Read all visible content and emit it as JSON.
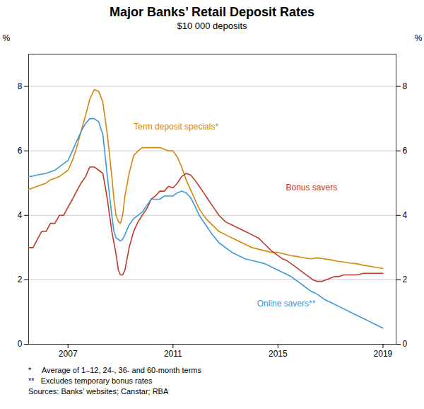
{
  "chart_data": {
    "type": "line",
    "title": "Major Banks’ Retail Deposit Rates",
    "subtitle": "$10 000 deposits",
    "ylabel": "%",
    "y2label": "%",
    "xlim": [
      2005.5,
      2019.5
    ],
    "xticks": [
      2007,
      2011,
      2015,
      2019
    ],
    "ylim": [
      0,
      9
    ],
    "yticks": [
      0,
      2,
      4,
      6,
      8
    ],
    "y2lim": [
      0,
      9
    ],
    "y2ticks": [
      0,
      2,
      4,
      6,
      8
    ],
    "grid": true,
    "series": [
      {
        "name": "Term deposit specials*",
        "color": "#D4860A",
        "x": [
          2005.5,
          2005.67,
          2005.83,
          2006.0,
          2006.17,
          2006.33,
          2006.5,
          2006.67,
          2006.83,
          2007.0,
          2007.17,
          2007.33,
          2007.5,
          2007.67,
          2007.83,
          2008.0,
          2008.17,
          2008.33,
          2008.5,
          2008.67,
          2008.75,
          2008.83,
          2008.92,
          2009.0,
          2009.08,
          2009.17,
          2009.33,
          2009.5,
          2009.67,
          2009.83,
          2010.0,
          2010.17,
          2010.33,
          2010.5,
          2010.67,
          2010.83,
          2011.0,
          2011.17,
          2011.33,
          2011.5,
          2011.67,
          2011.83,
          2012.0,
          2012.25,
          2012.5,
          2012.75,
          2013.0,
          2013.25,
          2013.5,
          2013.75,
          2014.0,
          2014.25,
          2014.5,
          2014.75,
          2015.0,
          2015.25,
          2015.5,
          2015.75,
          2016.0,
          2016.25,
          2016.5,
          2016.75,
          2017.0,
          2017.25,
          2017.5,
          2017.75,
          2018.0,
          2018.25,
          2018.5,
          2018.75,
          2019.0
        ],
        "values": [
          4.8,
          4.85,
          4.9,
          4.95,
          5.0,
          5.1,
          5.15,
          5.2,
          5.3,
          5.4,
          5.7,
          6.1,
          6.6,
          7.1,
          7.6,
          7.9,
          7.85,
          7.5,
          6.5,
          5.2,
          4.5,
          4.0,
          3.8,
          3.75,
          4.0,
          4.6,
          5.3,
          5.85,
          6.0,
          6.1,
          6.1,
          6.1,
          6.1,
          6.1,
          6.05,
          6.0,
          6.0,
          5.8,
          5.5,
          5.1,
          4.8,
          4.5,
          4.2,
          3.9,
          3.7,
          3.5,
          3.4,
          3.3,
          3.2,
          3.1,
          3.0,
          2.95,
          2.9,
          2.85,
          2.85,
          2.8,
          2.75,
          2.72,
          2.68,
          2.65,
          2.68,
          2.65,
          2.62,
          2.58,
          2.55,
          2.52,
          2.5,
          2.45,
          2.42,
          2.38,
          2.35
        ]
      },
      {
        "name": "Bonus savers",
        "color": "#C0392B",
        "x": [
          2005.5,
          2005.67,
          2005.83,
          2006.0,
          2006.17,
          2006.33,
          2006.5,
          2006.67,
          2006.83,
          2007.0,
          2007.17,
          2007.33,
          2007.5,
          2007.67,
          2007.83,
          2008.0,
          2008.17,
          2008.33,
          2008.5,
          2008.67,
          2008.83,
          2008.92,
          2009.0,
          2009.08,
          2009.17,
          2009.33,
          2009.5,
          2009.67,
          2009.83,
          2010.0,
          2010.17,
          2010.33,
          2010.5,
          2010.67,
          2010.83,
          2011.0,
          2011.17,
          2011.33,
          2011.5,
          2011.67,
          2011.83,
          2012.0,
          2012.17,
          2012.33,
          2012.5,
          2012.75,
          2013.0,
          2013.25,
          2013.5,
          2013.75,
          2014.0,
          2014.25,
          2014.5,
          2014.75,
          2015.0,
          2015.17,
          2015.33,
          2015.5,
          2015.67,
          2015.83,
          2016.0,
          2016.17,
          2016.33,
          2016.5,
          2016.67,
          2016.83,
          2017.0,
          2017.17,
          2017.33,
          2017.5,
          2017.75,
          2018.0,
          2018.25,
          2018.5,
          2018.75,
          2019.0
        ],
        "values": [
          3.0,
          3.0,
          3.25,
          3.5,
          3.5,
          3.75,
          3.75,
          4.0,
          4.0,
          4.25,
          4.5,
          4.75,
          5.0,
          5.2,
          5.5,
          5.5,
          5.4,
          5.3,
          4.5,
          3.5,
          2.8,
          2.3,
          2.15,
          2.15,
          2.3,
          3.0,
          3.5,
          3.8,
          4.0,
          4.2,
          4.5,
          4.6,
          4.75,
          4.75,
          4.9,
          4.85,
          5.0,
          5.2,
          5.3,
          5.25,
          5.1,
          4.9,
          4.7,
          4.5,
          4.3,
          4.0,
          3.8,
          3.7,
          3.6,
          3.5,
          3.4,
          3.3,
          3.1,
          2.9,
          2.75,
          2.65,
          2.6,
          2.5,
          2.4,
          2.3,
          2.2,
          2.1,
          2.0,
          1.95,
          1.95,
          2.0,
          2.05,
          2.1,
          2.1,
          2.15,
          2.15,
          2.15,
          2.2,
          2.2,
          2.2,
          2.2
        ]
      },
      {
        "name": "Online savers**",
        "color": "#3A9AD9",
        "x": [
          2005.5,
          2005.67,
          2005.83,
          2006.0,
          2006.17,
          2006.33,
          2006.5,
          2006.67,
          2006.83,
          2007.0,
          2007.17,
          2007.33,
          2007.5,
          2007.67,
          2007.83,
          2008.0,
          2008.17,
          2008.33,
          2008.5,
          2008.67,
          2008.75,
          2008.83,
          2008.92,
          2009.0,
          2009.08,
          2009.17,
          2009.33,
          2009.5,
          2009.67,
          2009.83,
          2010.0,
          2010.17,
          2010.33,
          2010.5,
          2010.67,
          2010.83,
          2011.0,
          2011.17,
          2011.33,
          2011.5,
          2011.67,
          2011.83,
          2012.0,
          2012.25,
          2012.5,
          2012.75,
          2013.0,
          2013.25,
          2013.5,
          2013.75,
          2014.0,
          2014.25,
          2014.5,
          2014.75,
          2015.0,
          2015.25,
          2015.5,
          2015.75,
          2016.0,
          2016.25,
          2016.5,
          2016.75,
          2017.0,
          2017.25,
          2017.5,
          2017.75,
          2018.0,
          2018.25,
          2018.5,
          2018.75,
          2019.0
        ],
        "values": [
          5.2,
          5.22,
          5.25,
          5.28,
          5.3,
          5.35,
          5.4,
          5.5,
          5.6,
          5.7,
          6.0,
          6.3,
          6.6,
          6.85,
          7.0,
          7.0,
          6.9,
          6.5,
          5.2,
          4.0,
          3.5,
          3.3,
          3.25,
          3.2,
          3.25,
          3.4,
          3.7,
          3.9,
          4.0,
          4.1,
          4.3,
          4.5,
          4.5,
          4.5,
          4.6,
          4.6,
          4.6,
          4.7,
          4.75,
          4.7,
          4.55,
          4.3,
          4.0,
          3.7,
          3.4,
          3.15,
          3.0,
          2.85,
          2.75,
          2.65,
          2.6,
          2.55,
          2.5,
          2.4,
          2.3,
          2.2,
          2.1,
          1.95,
          1.8,
          1.65,
          1.55,
          1.4,
          1.3,
          1.2,
          1.1,
          1.0,
          0.9,
          0.8,
          0.7,
          0.6,
          0.5
        ]
      }
    ],
    "annotations": [
      {
        "text": "Term deposit specials*",
        "x": 2009.5,
        "y": 6.75
      },
      {
        "text": "Bonus savers",
        "x": 2015.3,
        "y": 4.85
      },
      {
        "text": "Online savers**",
        "x": 2014.2,
        "y": 1.25
      }
    ],
    "footnotes": [
      "*     Average of 1–12, 24-, 36- and 60-month terms",
      "**   Excludes temporary bonus rates",
      "Sources: Banks’ websites; Canstar; RBA"
    ]
  }
}
